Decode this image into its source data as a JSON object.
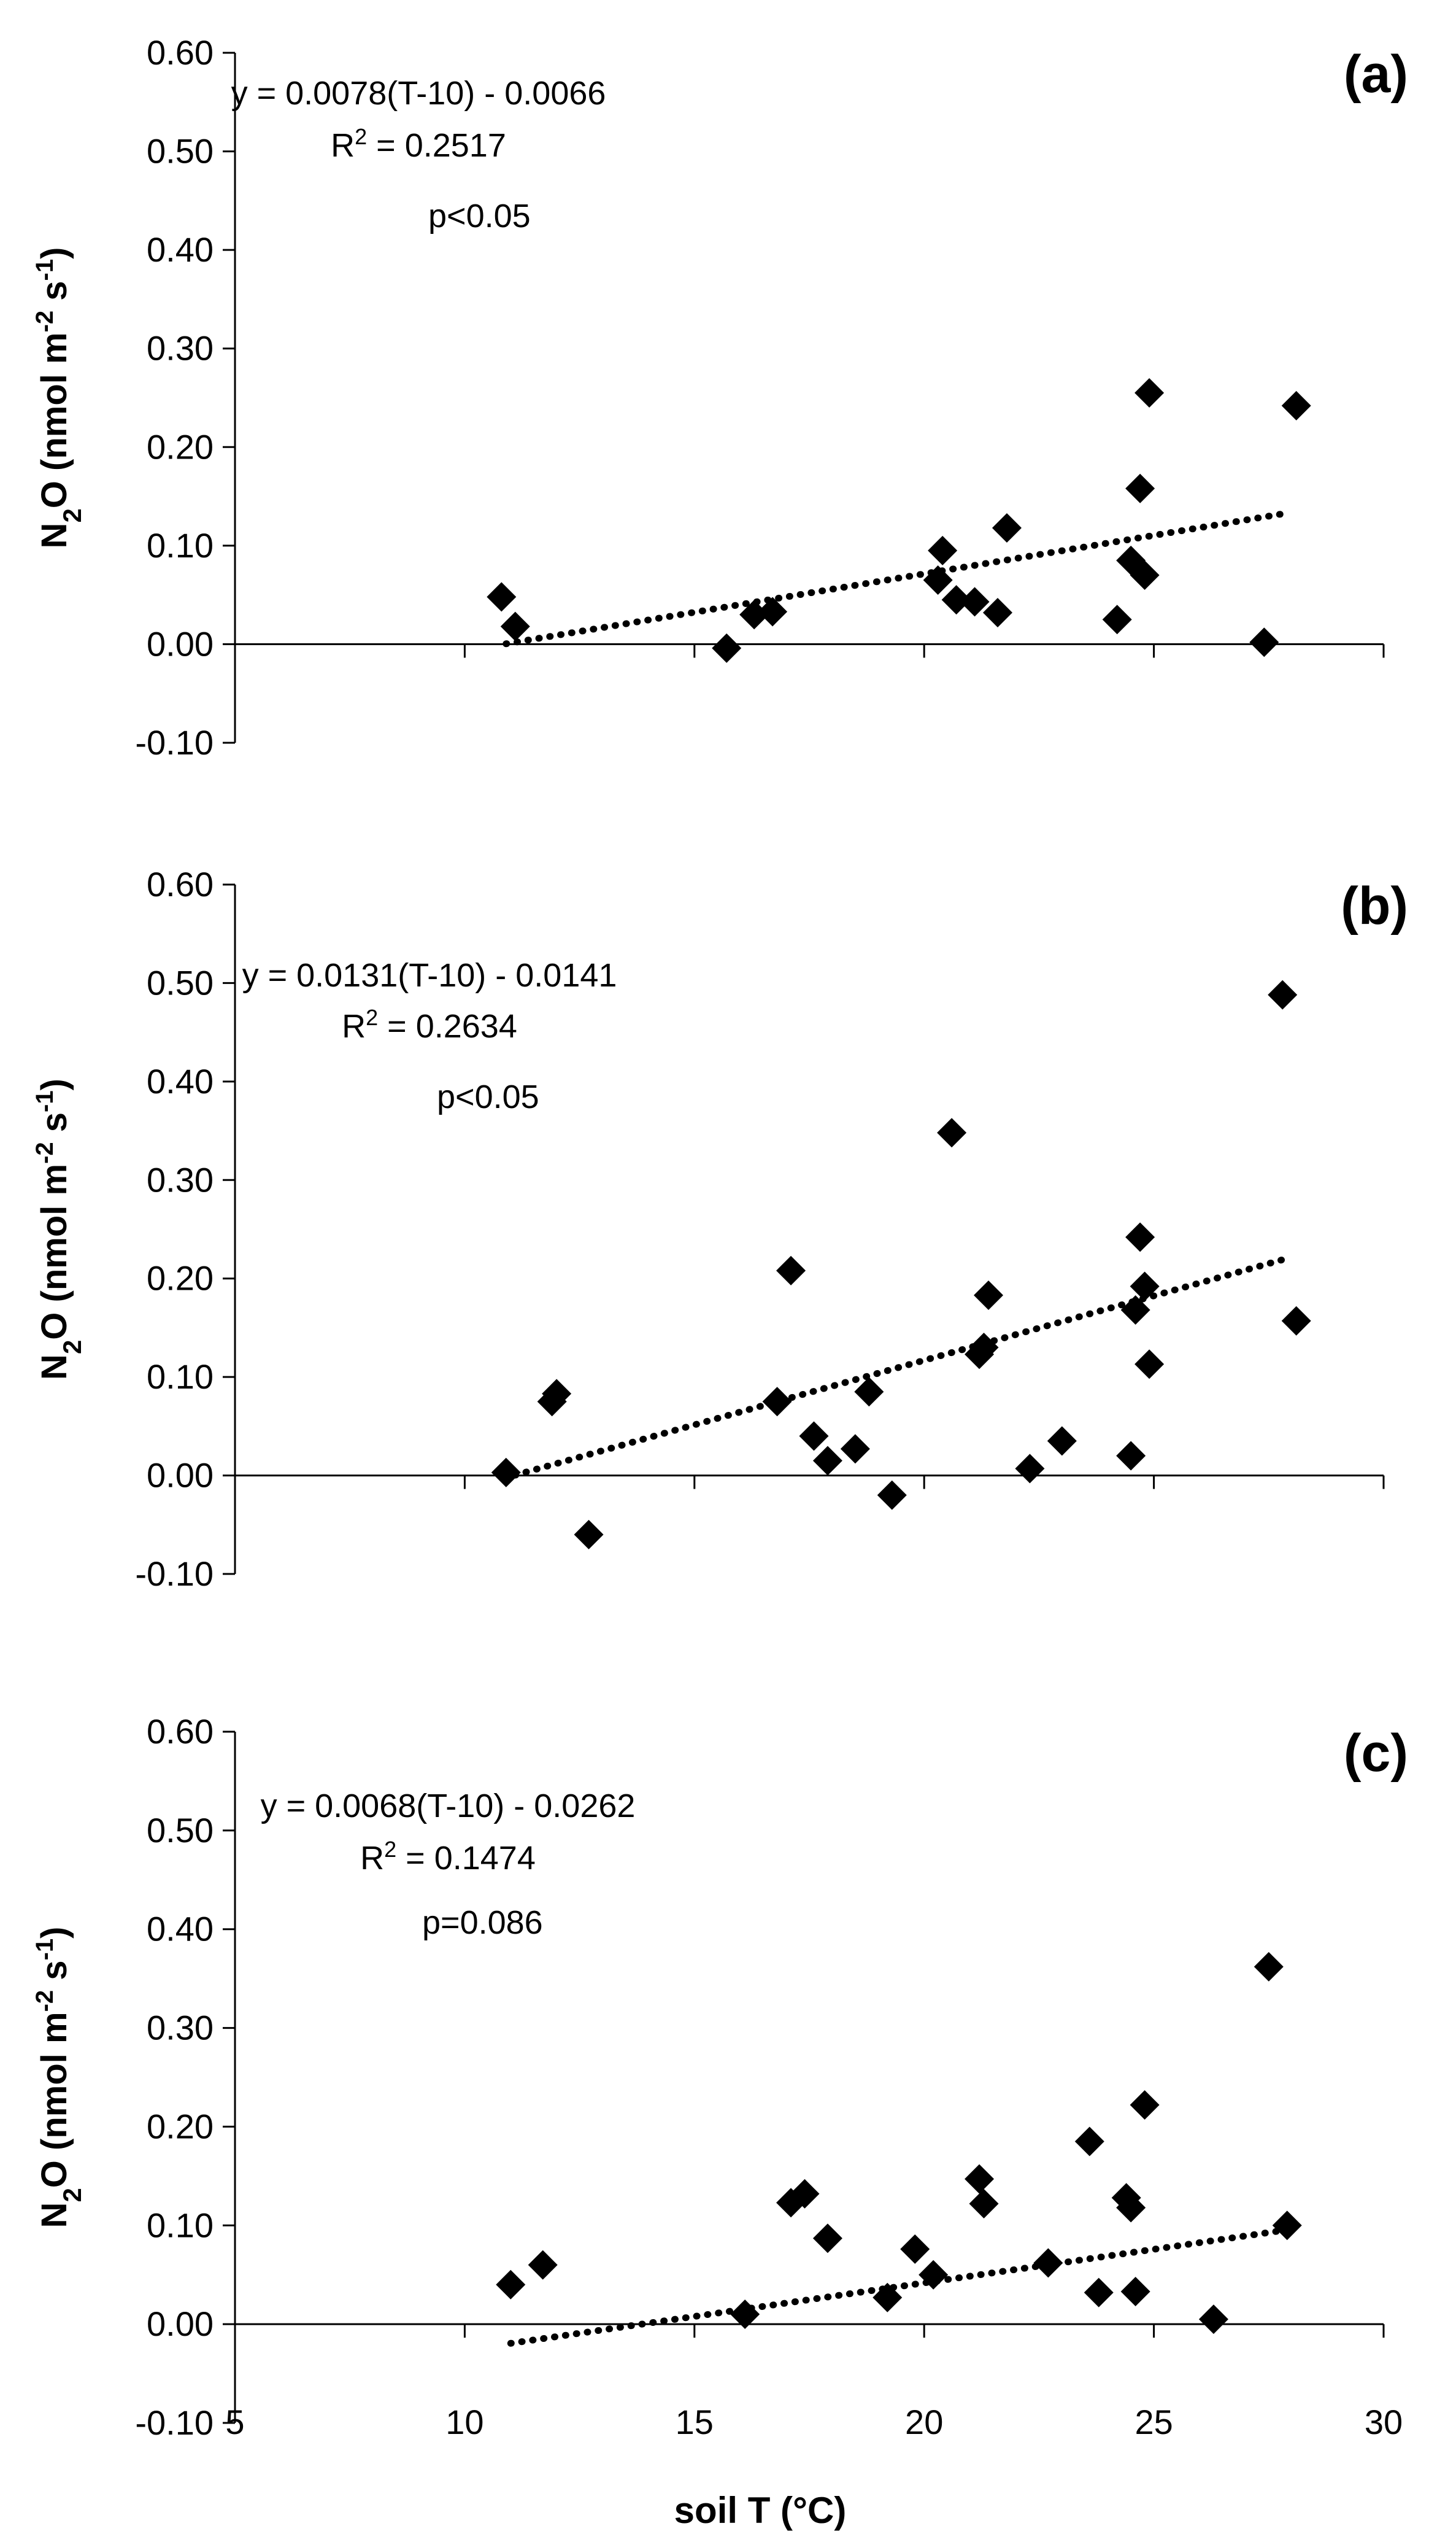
{
  "colors": {
    "marker": "#000000",
    "axis": "#000000",
    "trendline": "#000000",
    "background": "#ffffff"
  },
  "chart_data": [
    {
      "type": "scatter",
      "panel": "(a)",
      "ylabel": {
        "base": "N",
        "sub": "2",
        "main": "O (nmol m",
        "exp1": "-2",
        "mid": " s",
        "exp2": "-1",
        "close": ")"
      },
      "ylim": [
        -0.1,
        0.6
      ],
      "yticks": [
        -0.1,
        0.0,
        0.1,
        0.2,
        0.3,
        0.4,
        0.5,
        0.6
      ],
      "ytick_labels": [
        "-0.10",
        "0.00",
        "0.10",
        "0.20",
        "0.30",
        "0.40",
        "0.50",
        "0.60"
      ],
      "xlim": [
        5,
        30
      ],
      "xticks": [
        5,
        10,
        15,
        20,
        25,
        30
      ],
      "show_x_labels": false,
      "equation": "y = 0.0078(T-10) - 0.0066",
      "r2_prefix": "R",
      "r2_sup": "2",
      "r2_value": " = 0.2517",
      "pvalue": "p<0.05",
      "trendline": {
        "slope": 0.0078,
        "intercept": -0.0066,
        "x_start": 10.9,
        "x_end": 27.8
      },
      "x": [
        10.8,
        11.1,
        15.7,
        16.3,
        16.7,
        20.3,
        20.4,
        20.7,
        21.1,
        21.6,
        21.8,
        24.2,
        24.5,
        24.7,
        24.8,
        24.9,
        27.4,
        28.1
      ],
      "y": [
        0.048,
        0.018,
        -0.004,
        0.03,
        0.033,
        0.065,
        0.095,
        0.045,
        0.043,
        0.032,
        0.118,
        0.025,
        0.085,
        0.158,
        0.07,
        0.255,
        0.002,
        0.242
      ]
    },
    {
      "type": "scatter",
      "panel": "(b)",
      "ylabel": {
        "base": "N",
        "sub": "2",
        "main": "O (nmol m",
        "exp1": "-2",
        "mid": " s",
        "exp2": "-1",
        "close": ")"
      },
      "ylim": [
        -0.1,
        0.6
      ],
      "yticks": [
        -0.1,
        0.0,
        0.1,
        0.2,
        0.3,
        0.4,
        0.5,
        0.6
      ],
      "ytick_labels": [
        "-0.10",
        "0.00",
        "0.10",
        "0.20",
        "0.30",
        "0.40",
        "0.50",
        "0.60"
      ],
      "xlim": [
        5,
        30
      ],
      "xticks": [
        5,
        10,
        15,
        20,
        25,
        30
      ],
      "show_x_labels": false,
      "equation": "y = 0.0131(T-10) - 0.0141",
      "r2_prefix": "R",
      "r2_sup": "2",
      "r2_value": " = 0.2634",
      "pvalue": "p<0.05",
      "trendline": {
        "slope": 0.0131,
        "intercept": -0.0141,
        "x_start": 11.1,
        "x_end": 27.9
      },
      "x": [
        10.9,
        11.9,
        12.0,
        12.7,
        16.8,
        17.1,
        17.6,
        17.9,
        18.5,
        18.8,
        19.3,
        20.6,
        21.2,
        21.3,
        21.4,
        22.3,
        23.0,
        24.5,
        24.6,
        24.7,
        24.8,
        24.9,
        27.8,
        28.1
      ],
      "y": [
        0.003,
        0.075,
        0.083,
        -0.06,
        0.075,
        0.208,
        0.04,
        0.015,
        0.027,
        0.085,
        -0.02,
        0.348,
        0.123,
        0.13,
        0.183,
        0.007,
        0.035,
        0.02,
        0.168,
        0.242,
        0.192,
        0.113,
        0.488,
        0.157
      ]
    },
    {
      "type": "scatter",
      "panel": "(c)",
      "ylabel": {
        "base": "N",
        "sub": "2",
        "main": "O (nmol m",
        "exp1": "-2",
        "mid": " s",
        "exp2": "-1",
        "close": ")"
      },
      "ylim": [
        -0.1,
        0.6
      ],
      "yticks": [
        -0.1,
        0.0,
        0.1,
        0.2,
        0.3,
        0.4,
        0.5,
        0.6
      ],
      "ytick_labels": [
        "-0.10",
        "0.00",
        "0.10",
        "0.20",
        "0.30",
        "0.40",
        "0.50",
        "0.60"
      ],
      "xlim": [
        5,
        30
      ],
      "xticks": [
        5,
        10,
        15,
        20,
        25,
        30
      ],
      "xtick_labels": [
        "5",
        "10",
        "15",
        "20",
        "25",
        "30"
      ],
      "show_x_labels": true,
      "xlabel": "soil T (°C)",
      "equation": "y = 0.0068(T-10) - 0.0262",
      "r2_prefix": "R",
      "r2_sup": "2",
      "r2_value": " = 0.1474",
      "pvalue": "p=0.086",
      "trendline": {
        "slope": 0.0068,
        "intercept": -0.0262,
        "x_start": 11.0,
        "x_end": 27.8
      },
      "x": [
        11.0,
        11.7,
        16.1,
        17.1,
        17.4,
        17.9,
        19.2,
        19.8,
        20.2,
        21.2,
        21.3,
        22.7,
        23.6,
        23.8,
        24.4,
        24.5,
        24.6,
        24.8,
        26.3,
        27.5,
        27.9
      ],
      "y": [
        0.04,
        0.06,
        0.01,
        0.123,
        0.132,
        0.087,
        0.027,
        0.076,
        0.05,
        0.147,
        0.122,
        0.062,
        0.185,
        0.032,
        0.128,
        0.118,
        0.033,
        0.222,
        0.005,
        0.362,
        0.1
      ]
    }
  ]
}
